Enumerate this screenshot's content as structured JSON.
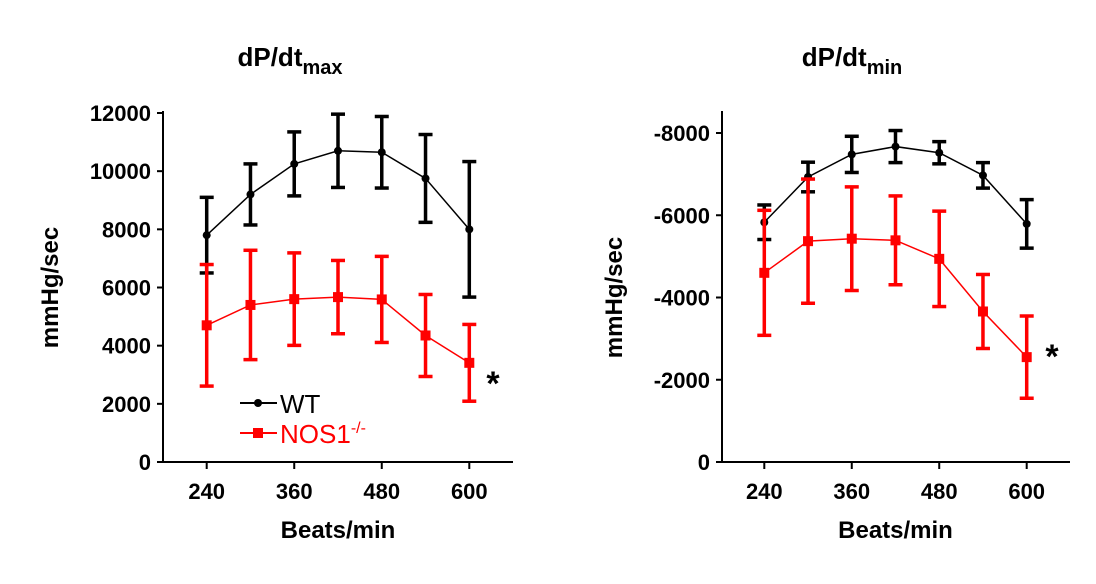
{
  "chart_data": [
    {
      "type": "line",
      "title": "dP/dt",
      "title_subscript": "max",
      "xlabel": "Beats/min",
      "ylabel": "mmHg/sec",
      "x": [
        240,
        300,
        360,
        420,
        480,
        540,
        600
      ],
      "xticks": [
        240,
        360,
        480,
        600
      ],
      "yticks": [
        0,
        2000,
        4000,
        6000,
        8000,
        10000,
        12000
      ],
      "ytick_labels": [
        "0",
        "2000",
        "4000",
        "6000",
        "8000",
        "10000",
        "12000"
      ],
      "xlim": [
        180,
        660
      ],
      "ylim": [
        0,
        12000
      ],
      "grid": false,
      "legend_position": "bottom-left",
      "annotation": "*",
      "series": [
        {
          "name": "WT",
          "color": "#000000",
          "marker": "circle",
          "values": [
            7800,
            9200,
            10250,
            10700,
            10650,
            9750,
            8000
          ],
          "errors": [
            1300,
            1050,
            1100,
            1260,
            1230,
            1510,
            2330
          ]
        },
        {
          "name": "NOS1",
          "name_superscript": "-/-",
          "color": "#ff0000",
          "marker": "square",
          "values": [
            4700,
            5400,
            5600,
            5670,
            5590,
            4350,
            3410
          ],
          "errors": [
            2090,
            1880,
            1590,
            1260,
            1480,
            1410,
            1320
          ]
        }
      ]
    },
    {
      "type": "line",
      "title": "dP/dt",
      "title_subscript": "min",
      "xlabel": "Beats/min",
      "ylabel": "mmHg/sec",
      "x": [
        240,
        300,
        360,
        420,
        480,
        540,
        600
      ],
      "xticks": [
        240,
        360,
        480,
        600
      ],
      "yticks": [
        0,
        -2000,
        -4000,
        -6000,
        -8000
      ],
      "ytick_labels": [
        "0",
        "-2000",
        "-4000",
        "-6000",
        "-8000"
      ],
      "xlim": [
        180,
        660
      ],
      "ylim": [
        0,
        -8600
      ],
      "y_inverted": true,
      "grid": false,
      "annotation": "*",
      "series": [
        {
          "name": "WT",
          "color": "#000000",
          "marker": "circle",
          "values": [
            -5830,
            -6930,
            -7480,
            -7670,
            -7520,
            -6970,
            -5790
          ],
          "errors": [
            420,
            360,
            440,
            390,
            270,
            310,
            590
          ]
        },
        {
          "name": "NOS1",
          "name_superscript": "-/-",
          "color": "#ff0000",
          "marker": "square",
          "values": [
            -4600,
            -5370,
            -5430,
            -5390,
            -4940,
            -3660,
            -2550
          ],
          "errors": [
            1520,
            1510,
            1260,
            1080,
            1160,
            900,
            1000
          ]
        }
      ]
    }
  ]
}
